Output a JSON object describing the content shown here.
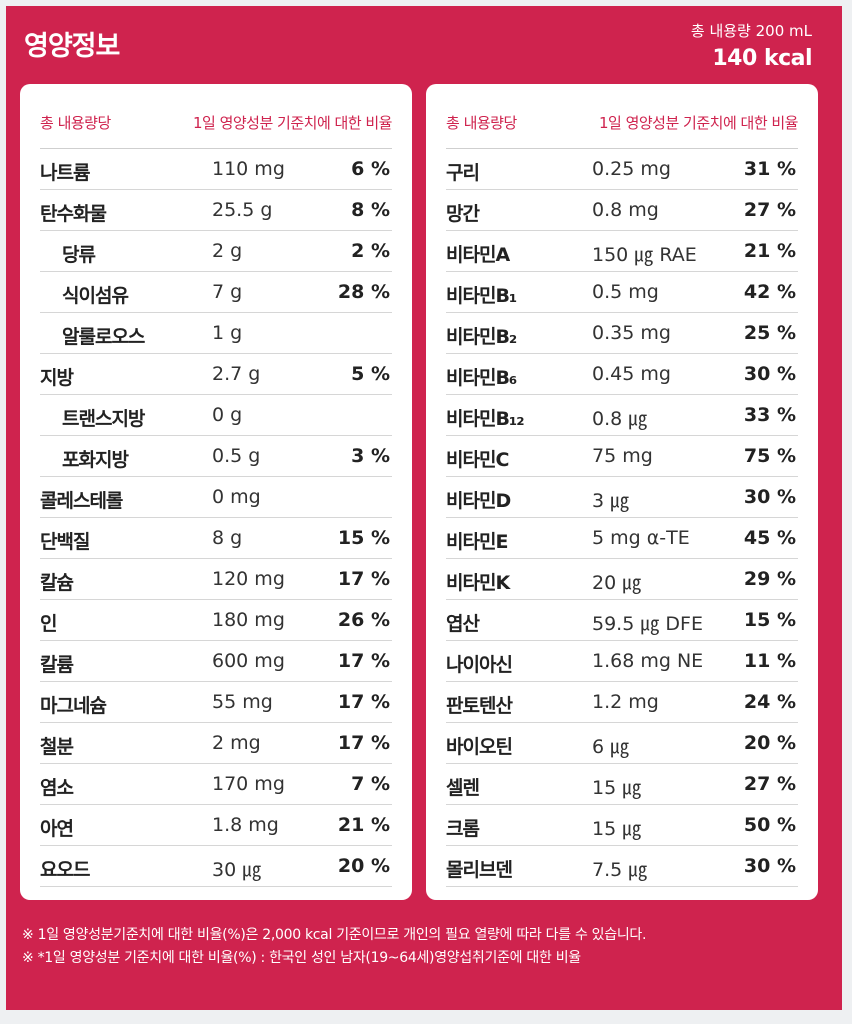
{
  "header": {
    "title": "영양정보",
    "volume": "총 내용량 200 mL",
    "energy": "140 kcal"
  },
  "table_headers": {
    "per": "총 내용량당",
    "ratio": "1일 영양성분 기준치에 대한 비율"
  },
  "left_items": [
    {
      "name": "나트륨",
      "amount": "110 mg",
      "percent": "6 %",
      "indent": false
    },
    {
      "name": "탄수화물",
      "amount": "25.5 g",
      "percent": "8 %",
      "indent": false
    },
    {
      "name": "당류",
      "amount": "2 g",
      "percent": "2 %",
      "indent": true
    },
    {
      "name": "식이섬유",
      "amount": "7 g",
      "percent": "28 %",
      "indent": true
    },
    {
      "name": "알룰로오스",
      "amount": "1 g",
      "percent": "",
      "indent": true
    },
    {
      "name": "지방",
      "amount": "2.7 g",
      "percent": "5 %",
      "indent": false
    },
    {
      "name": "트랜스지방",
      "amount": "0 g",
      "percent": "",
      "indent": true
    },
    {
      "name": "포화지방",
      "amount": "0.5 g",
      "percent": "3 %",
      "indent": true
    },
    {
      "name": "콜레스테롤",
      "amount": "0 mg",
      "percent": "",
      "indent": false
    },
    {
      "name": "단백질",
      "amount": "8 g",
      "percent": "15 %",
      "indent": false
    },
    {
      "name": "칼슘",
      "amount": "120 mg",
      "percent": "17 %",
      "indent": false
    },
    {
      "name": "인",
      "amount": "180 mg",
      "percent": "26 %",
      "indent": false
    },
    {
      "name": "칼륨",
      "amount": "600 mg",
      "percent": "17 %",
      "indent": false
    },
    {
      "name": "마그네슘",
      "amount": "55 mg",
      "percent": "17 %",
      "indent": false
    },
    {
      "name": "철분",
      "amount": "2 mg",
      "percent": "17 %",
      "indent": false
    },
    {
      "name": "염소",
      "amount": "170 mg",
      "percent": "7 %",
      "indent": false
    },
    {
      "name": "아연",
      "amount": "1.8 mg",
      "percent": "21 %",
      "indent": false
    },
    {
      "name": "요오드",
      "amount": "30 ㎍",
      "percent": "20 %",
      "indent": false
    }
  ],
  "right_items": [
    {
      "name": "구리",
      "amount": "0.25 mg",
      "percent": "31 %",
      "indent": false
    },
    {
      "name": "망간",
      "amount": "0.8 mg",
      "percent": "27 %",
      "indent": false
    },
    {
      "name": "비타민A",
      "amount": "150 ㎍ RAE",
      "percent": "21 %",
      "indent": false
    },
    {
      "name": "비타민B₁",
      "amount": "0.5 mg",
      "percent": "42 %",
      "indent": false
    },
    {
      "name": "비타민B₂",
      "amount": "0.35 mg",
      "percent": "25 %",
      "indent": false
    },
    {
      "name": "비타민B₆",
      "amount": "0.45 mg",
      "percent": "30 %",
      "indent": false
    },
    {
      "name": "비타민B₁₂",
      "amount": "0.8 ㎍",
      "percent": "33 %",
      "indent": false
    },
    {
      "name": "비타민C",
      "amount": "75 mg",
      "percent": "75 %",
      "indent": false
    },
    {
      "name": "비타민D",
      "amount": "3 ㎍",
      "percent": "30 %",
      "indent": false
    },
    {
      "name": "비타민E",
      "amount": "5 mg α-TE",
      "percent": "45 %",
      "indent": false
    },
    {
      "name": "비타민K",
      "amount": "20 ㎍",
      "percent": "29 %",
      "indent": false
    },
    {
      "name": "엽산",
      "amount": "59.5 ㎍ DFE",
      "percent": "15 %",
      "indent": false
    },
    {
      "name": "나이아신",
      "amount": "1.68 mg NE",
      "percent": "11 %",
      "indent": false
    },
    {
      "name": "판토텐산",
      "amount": "1.2 mg",
      "percent": "24 %",
      "indent": false
    },
    {
      "name": "바이오틴",
      "amount": "6 ㎍",
      "percent": "20 %",
      "indent": false
    },
    {
      "name": "셀렌",
      "amount": "15 ㎍",
      "percent": "27 %",
      "indent": false
    },
    {
      "name": "크롬",
      "amount": "15 ㎍",
      "percent": "50 %",
      "indent": false
    },
    {
      "name": "몰리브덴",
      "amount": "7.5 ㎍",
      "percent": "30 %",
      "indent": false
    }
  ],
  "footnotes": [
    "※ 1일 영양성분기준치에 대한 비율(%)은 2,000 kcal 기준이므로 개인의 필요 열량에 따라 다를 수 있습니다.",
    "※ *1일 영양성분 기준치에 대한 비율(%) : 한국인 성인 남자(19~64세)영양섭취기준에 대한 비율"
  ],
  "colors": {
    "brand": "#cf234e",
    "card": "#ffffff",
    "text": "#222222"
  }
}
